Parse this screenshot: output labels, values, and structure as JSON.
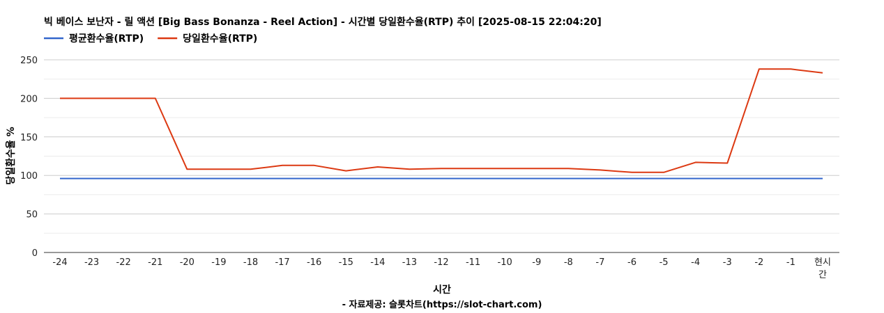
{
  "chart_data": {
    "type": "line",
    "title": "빅 베이스 보난자 - 릴 액션 [Big Bass Bonanza - Reel Action] - 시간별 당일환수율(RTP) 추이 [2025-08-15 22:04:20]",
    "xlabel": "시간",
    "ylabel": "당일환수율 %",
    "source": "- 자료제공: 슬롯차트(https://slot-chart.com)",
    "categories": [
      "-24",
      "-23",
      "-22",
      "-21",
      "-20",
      "-19",
      "-18",
      "-17",
      "-16",
      "-15",
      "-14",
      "-13",
      "-12",
      "-11",
      "-10",
      "-9",
      "-8",
      "-7",
      "-6",
      "-5",
      "-4",
      "-3",
      "-2",
      "-1",
      "현시간"
    ],
    "ylim": [
      0,
      250
    ],
    "yticks": [
      0,
      50,
      100,
      150,
      200,
      250
    ],
    "grid": true,
    "legend_position": "top-left",
    "series": [
      {
        "name": "평균환수율(RTP)",
        "color": "#3366cc",
        "values": [
          96,
          96,
          96,
          96,
          96,
          96,
          96,
          96,
          96,
          96,
          96,
          96,
          96,
          96,
          96,
          96,
          96,
          96,
          96,
          96,
          96,
          96,
          96,
          96,
          96
        ]
      },
      {
        "name": "당일환수율(RTP)",
        "color": "#dc3912",
        "values": [
          200,
          200,
          200,
          200,
          108,
          108,
          108,
          113,
          113,
          106,
          111,
          108,
          109,
          109,
          109,
          109,
          109,
          107,
          104,
          104,
          117,
          116,
          238,
          238,
          233
        ]
      }
    ]
  }
}
